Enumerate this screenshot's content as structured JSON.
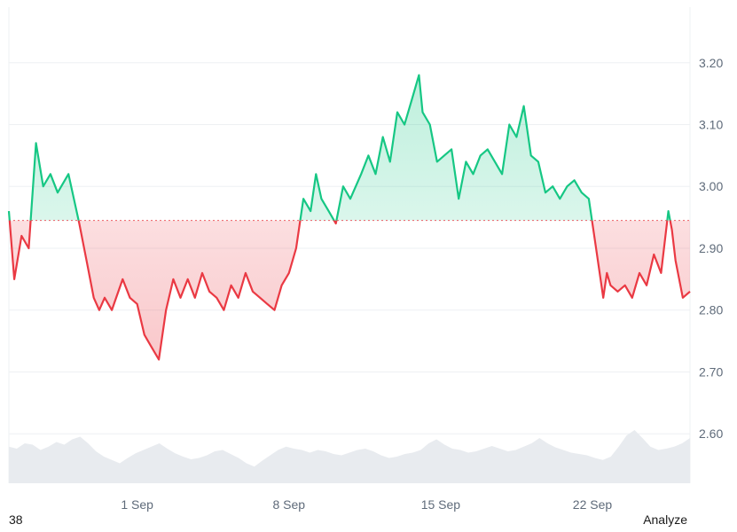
{
  "footer": {
    "left_text": "38",
    "right_text": "Analyze"
  },
  "colors": {
    "up": "#16c784",
    "down": "#ea3943",
    "baseline": "#ea3943",
    "grid": "#eef0f3",
    "volume": "#e8ebef"
  },
  "chart_data": {
    "type": "area",
    "baseline": 2.945,
    "ylim": [
      2.52,
      3.29
    ],
    "y_ticks": [
      2.6,
      2.7,
      2.8,
      2.9,
      3.0,
      3.1,
      3.2
    ],
    "y_tick_labels": [
      "2.60",
      "2.70",
      "2.80",
      "2.90",
      "3.00",
      "3.10",
      "3.20"
    ],
    "x_range": [
      "2024-08-26T02:00",
      "2024-09-26T12:00"
    ],
    "x_ticks": [
      "2024-09-01",
      "2024-09-08",
      "2024-09-15",
      "2024-09-22"
    ],
    "x_tick_labels": [
      "1 Sep",
      "8 Sep",
      "15 Sep",
      "22 Sep"
    ],
    "grid": true,
    "series": [
      {
        "x": [
          "2024-08-26T02:00",
          "2024-08-26T08:00",
          "2024-08-26T16:00",
          "2024-08-27T00:00",
          "2024-08-27T08:00",
          "2024-08-27T16:00",
          "2024-08-28T00:00",
          "2024-08-28T08:00",
          "2024-08-28T20:00",
          "2024-08-29T08:00",
          "2024-08-29T16:00",
          "2024-08-30T00:00",
          "2024-08-30T06:00",
          "2024-08-30T12:00",
          "2024-08-30T20:00",
          "2024-08-31T08:00",
          "2024-08-31T16:00",
          "2024-09-01T00:00",
          "2024-09-01T08:00",
          "2024-09-01T16:00",
          "2024-09-02T00:00",
          "2024-09-02T08:00",
          "2024-09-02T16:00",
          "2024-09-03T00:00",
          "2024-09-03T08:00",
          "2024-09-03T16:00",
          "2024-09-04T00:00",
          "2024-09-04T08:00",
          "2024-09-04T16:00",
          "2024-09-05T00:00",
          "2024-09-05T08:00",
          "2024-09-05T16:00",
          "2024-09-06T00:00",
          "2024-09-06T08:00",
          "2024-09-06T16:00",
          "2024-09-07T00:00",
          "2024-09-07T08:00",
          "2024-09-07T16:00",
          "2024-09-08T00:00",
          "2024-09-08T08:00",
          "2024-09-08T16:00",
          "2024-09-09T00:00",
          "2024-09-09T06:00",
          "2024-09-09T12:00",
          "2024-09-09T20:00",
          "2024-09-10T04:00",
          "2024-09-10T12:00",
          "2024-09-10T20:00",
          "2024-09-11T08:00",
          "2024-09-11T16:00",
          "2024-09-12T00:00",
          "2024-09-12T08:00",
          "2024-09-12T16:00",
          "2024-09-13T00:00",
          "2024-09-13T08:00",
          "2024-09-13T16:00",
          "2024-09-14T00:00",
          "2024-09-14T04:00",
          "2024-09-14T12:00",
          "2024-09-14T20:00",
          "2024-09-15T04:00",
          "2024-09-15T12:00",
          "2024-09-15T20:00",
          "2024-09-16T04:00",
          "2024-09-16T12:00",
          "2024-09-16T20:00",
          "2024-09-17T04:00",
          "2024-09-17T12:00",
          "2024-09-17T20:00",
          "2024-09-18T04:00",
          "2024-09-18T12:00",
          "2024-09-18T20:00",
          "2024-09-19T04:00",
          "2024-09-19T12:00",
          "2024-09-19T20:00",
          "2024-09-20T04:00",
          "2024-09-20T12:00",
          "2024-09-20T20:00",
          "2024-09-21T04:00",
          "2024-09-21T12:00",
          "2024-09-21T20:00",
          "2024-09-22T04:00",
          "2024-09-22T12:00",
          "2024-09-22T16:00",
          "2024-09-22T20:00",
          "2024-09-23T04:00",
          "2024-09-23T12:00",
          "2024-09-23T20:00",
          "2024-09-24T04:00",
          "2024-09-24T12:00",
          "2024-09-24T20:00",
          "2024-09-25T04:00",
          "2024-09-25T12:00",
          "2024-09-25T16:00",
          "2024-09-25T20:00",
          "2024-09-26T04:00",
          "2024-09-26T12:00"
        ],
        "y": [
          2.96,
          2.85,
          2.92,
          2.9,
          3.07,
          3.0,
          3.02,
          2.99,
          3.02,
          2.94,
          2.88,
          2.82,
          2.8,
          2.82,
          2.8,
          2.85,
          2.82,
          2.81,
          2.76,
          2.74,
          2.72,
          2.8,
          2.85,
          2.82,
          2.85,
          2.82,
          2.86,
          2.83,
          2.82,
          2.8,
          2.84,
          2.82,
          2.86,
          2.83,
          2.82,
          2.81,
          2.8,
          2.84,
          2.86,
          2.9,
          2.98,
          2.96,
          3.02,
          2.98,
          2.96,
          2.94,
          3.0,
          2.98,
          3.02,
          3.05,
          3.02,
          3.08,
          3.04,
          3.12,
          3.1,
          3.14,
          3.18,
          3.12,
          3.1,
          3.04,
          3.05,
          3.06,
          2.98,
          3.04,
          3.02,
          3.05,
          3.06,
          3.04,
          3.02,
          3.1,
          3.08,
          3.13,
          3.05,
          3.04,
          2.99,
          3.0,
          2.98,
          3.0,
          3.01,
          2.99,
          2.98,
          2.9,
          2.82,
          2.86,
          2.84,
          2.83,
          2.84,
          2.82,
          2.86,
          2.84,
          2.89,
          2.86,
          2.96,
          2.93,
          2.88,
          2.82,
          2.83
        ]
      }
    ],
    "volume": [
      0.55,
      0.52,
      0.6,
      0.58,
      0.5,
      0.55,
      0.62,
      0.58,
      0.66,
      0.7,
      0.6,
      0.48,
      0.4,
      0.35,
      0.3,
      0.38,
      0.45,
      0.5,
      0.55,
      0.6,
      0.52,
      0.45,
      0.4,
      0.36,
      0.38,
      0.42,
      0.48,
      0.5,
      0.44,
      0.38,
      0.3,
      0.25,
      0.34,
      0.42,
      0.5,
      0.55,
      0.52,
      0.5,
      0.46,
      0.5,
      0.48,
      0.44,
      0.42,
      0.46,
      0.5,
      0.52,
      0.48,
      0.42,
      0.38,
      0.4,
      0.44,
      0.46,
      0.5,
      0.6,
      0.66,
      0.58,
      0.52,
      0.5,
      0.46,
      0.48,
      0.52,
      0.56,
      0.52,
      0.48,
      0.5,
      0.55,
      0.6,
      0.68,
      0.6,
      0.54,
      0.5,
      0.46,
      0.44,
      0.42,
      0.38,
      0.35,
      0.4,
      0.55,
      0.72,
      0.8,
      0.68,
      0.55,
      0.5,
      0.52,
      0.55,
      0.6,
      0.68
    ]
  }
}
